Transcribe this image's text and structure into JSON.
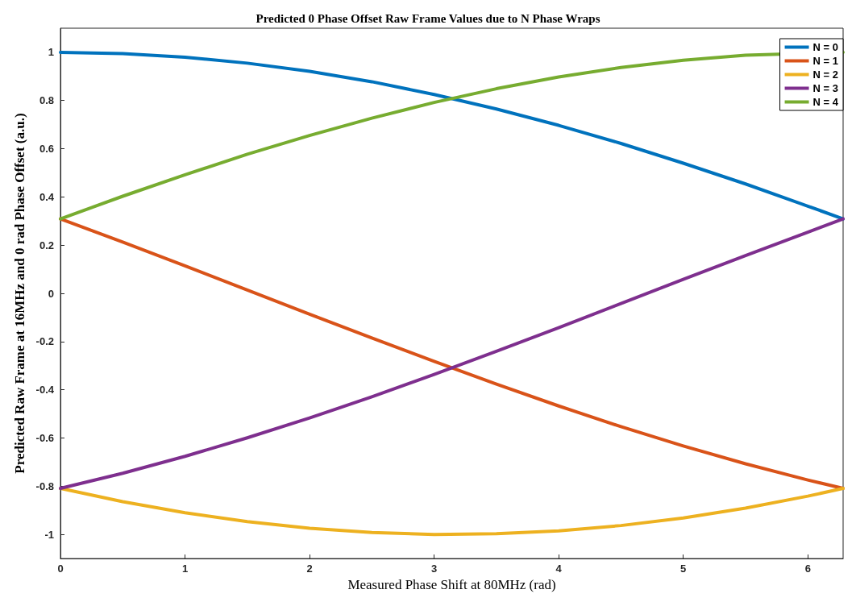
{
  "chart_data": {
    "type": "line",
    "title": "Predicted 0 Phase Offset Raw Frame Values due to N Phase Wraps",
    "xlabel": "Measured Phase Shift at 80MHz (rad)",
    "ylabel": "Predicted Raw Frame at 16MHz and 0 rad Phase Offset (a.u.)",
    "x": [
      0,
      0.5,
      1,
      1.5,
      2,
      2.5,
      3,
      3.5,
      4,
      4.5,
      5,
      5.5,
      6,
      6.2832
    ],
    "series": [
      {
        "name": "N = 0",
        "color": "#0072bd",
        "values": [
          1,
          0.995,
          0.98,
          0.955,
          0.921,
          0.878,
          0.825,
          0.765,
          0.697,
          0.622,
          0.54,
          0.454,
          0.362,
          0.309
        ]
      },
      {
        "name": "N = 1",
        "color": "#d95319",
        "values": [
          0.309,
          0.213,
          0.114,
          0.014,
          -0.086,
          -0.185,
          -0.282,
          -0.376,
          -0.467,
          -0.553,
          -0.633,
          -0.707,
          -0.774,
          -0.809
        ]
      },
      {
        "name": "N = 2",
        "color": "#edb120",
        "values": [
          -0.809,
          -0.864,
          -0.91,
          -0.947,
          -0.974,
          -0.992,
          -1,
          -0.997,
          -0.985,
          -0.963,
          -0.932,
          -0.891,
          -0.841,
          -0.809
        ]
      },
      {
        "name": "N = 3",
        "color": "#7e2f8e",
        "values": [
          -0.809,
          -0.746,
          -0.676,
          -0.599,
          -0.517,
          -0.429,
          -0.336,
          -0.24,
          -0.142,
          -0.042,
          0.058,
          0.157,
          0.254,
          0.309
        ]
      },
      {
        "name": "N = 4",
        "color": "#77ac30",
        "values": [
          0.309,
          0.403,
          0.492,
          0.577,
          0.655,
          0.727,
          0.792,
          0.849,
          0.898,
          0.937,
          0.967,
          0.988,
          null,
          1
        ]
      }
    ],
    "xlim": [
      0,
      6.2832
    ],
    "xticks": [
      0,
      1,
      2,
      3,
      4,
      5,
      6
    ],
    "ylim": [
      -1.1,
      1.1
    ],
    "yticks": [
      -1,
      -0.8,
      -0.6,
      -0.4,
      -0.2,
      0,
      0.2,
      0.4,
      0.6,
      0.8,
      1
    ],
    "legend": "top right",
    "grid": false,
    "marker": "none",
    "line_style": "solid"
  }
}
